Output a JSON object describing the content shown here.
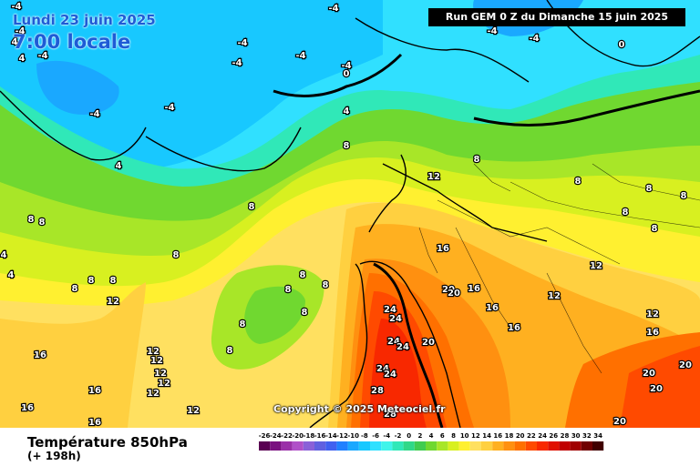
{
  "header": {
    "run_info": "Run GEM 0 Z du Dimanche 15 juin 2025",
    "valid_date": "Lundi 23 juin 2025",
    "valid_time": "7:00 locale"
  },
  "footer": {
    "field_title": "Température 850hPa",
    "lead_time": "(+ 198h)",
    "copyright": "Copyright © 2025 Meteociel.fr"
  },
  "legend": {
    "labels": [
      "-26",
      "-24",
      "-22",
      "-20",
      "-18",
      "-16",
      "-14",
      "-12",
      "-10",
      "-8",
      "-6",
      "-4",
      "-2",
      "0",
      "2",
      "4",
      "6",
      "8",
      "10",
      "12",
      "14",
      "16",
      "18",
      "20",
      "22",
      "24",
      "26",
      "28",
      "30",
      "32",
      "34"
    ],
    "colors": [
      "#5a0052",
      "#7a1080",
      "#9a30a8",
      "#b050c8",
      "#8a60d8",
      "#6060e0",
      "#4060f0",
      "#2080ff",
      "#1aa8ff",
      "#18c8ff",
      "#30e0ff",
      "#40f4ea",
      "#30e8b8",
      "#30d888",
      "#40cc50",
      "#70d830",
      "#a8e628",
      "#d8f020",
      "#fff030",
      "#ffe060",
      "#ffd040",
      "#ffb020",
      "#ff9010",
      "#ff7000",
      "#ff4a00",
      "#f82800",
      "#e01000",
      "#c00000",
      "#a00000",
      "#700000",
      "#400000"
    ]
  },
  "map_labels": [
    {
      "value": "-4"
    },
    {
      "value": "-4"
    },
    {
      "value": "-4"
    },
    {
      "value": "-4"
    },
    {
      "value": "-4"
    },
    {
      "value": "-4"
    },
    {
      "value": "-4"
    },
    {
      "value": "-4"
    },
    {
      "value": "-4"
    },
    {
      "value": "-4"
    },
    {
      "value": "-4"
    },
    {
      "value": "-4"
    },
    {
      "value": "0"
    },
    {
      "value": "0"
    },
    {
      "value": "0"
    },
    {
      "value": "4"
    },
    {
      "value": "4"
    },
    {
      "value": "4"
    },
    {
      "value": "4"
    },
    {
      "value": "8"
    },
    {
      "value": "8"
    },
    {
      "value": "8"
    },
    {
      "value": "8"
    },
    {
      "value": "8"
    },
    {
      "value": "8"
    },
    {
      "value": "8"
    },
    {
      "value": "8"
    },
    {
      "value": "8"
    },
    {
      "value": "8"
    },
    {
      "value": "8"
    },
    {
      "value": "8"
    },
    {
      "value": "8"
    },
    {
      "value": "8"
    },
    {
      "value": "8"
    },
    {
      "value": "8"
    },
    {
      "value": "8"
    },
    {
      "value": "8"
    },
    {
      "value": "8"
    },
    {
      "value": "8"
    },
    {
      "value": "12"
    },
    {
      "value": "12"
    },
    {
      "value": "12"
    },
    {
      "value": "12"
    },
    {
      "value": "12"
    },
    {
      "value": "12"
    },
    {
      "value": "12"
    },
    {
      "value": "12"
    },
    {
      "value": "12"
    },
    {
      "value": "12"
    },
    {
      "value": "12"
    },
    {
      "value": "16"
    },
    {
      "value": "16"
    },
    {
      "value": "16"
    },
    {
      "value": "16"
    },
    {
      "value": "16"
    },
    {
      "value": "16"
    },
    {
      "value": "16"
    },
    {
      "value": "16"
    },
    {
      "value": "16"
    },
    {
      "value": "20"
    },
    {
      "value": "20"
    },
    {
      "value": "20"
    },
    {
      "value": "20"
    },
    {
      "value": "20"
    },
    {
      "value": "20"
    },
    {
      "value": "20"
    },
    {
      "value": "24"
    },
    {
      "value": "24"
    },
    {
      "value": "24"
    },
    {
      "value": "24"
    },
    {
      "value": "24"
    },
    {
      "value": "24"
    },
    {
      "value": "28"
    },
    {
      "value": "28"
    },
    {
      "value": "4"
    },
    {
      "value": "4"
    }
  ]
}
